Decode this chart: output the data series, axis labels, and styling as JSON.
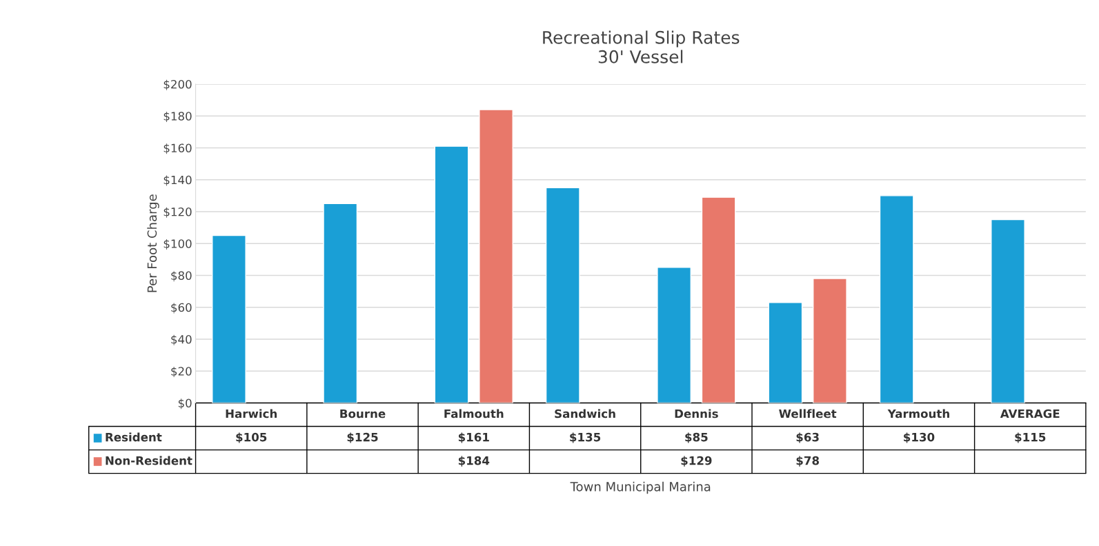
{
  "chart_data": {
    "type": "bar",
    "title": "Recreational Slip Rates",
    "subtitle": "30' Vessel",
    "annotations": [
      "Town Municipal Marina"
    ],
    "legend": "bottom left",
    "ylabel": "Per Foot Charge",
    "categories": [
      "Harwich",
      "Bourne",
      "Falmouth",
      "Sandwich",
      "Dennis",
      "Wellfleet",
      "Yarmouth",
      "AVERAGE"
    ],
    "series": [
      {
        "name": "Resident",
        "color": "#1a9fd6",
        "values": [
          105,
          125,
          161,
          135,
          85,
          63,
          130,
          115
        ],
        "value_labels": [
          "$105",
          "$125",
          "$161",
          "$135",
          "$85",
          "$63",
          "$130",
          "$115"
        ]
      },
      {
        "name": "Non-Resident",
        "color": "#e8786a",
        "values": [
          null,
          null,
          184,
          null,
          129,
          78,
          null,
          null
        ],
        "value_labels": [
          null,
          null,
          "$184",
          null,
          "$129",
          "$78",
          null,
          null
        ]
      }
    ],
    "ylim": [
      0,
      200
    ],
    "yticks": [
      {
        "value": 0,
        "label": "$0"
      },
      {
        "value": 20,
        "label": "$20"
      },
      {
        "value": 40,
        "label": "$40"
      },
      {
        "value": 60,
        "label": "$60"
      },
      {
        "value": 80,
        "label": "$80"
      },
      {
        "value": 100,
        "label": "$100"
      },
      {
        "value": 120,
        "label": "$120"
      },
      {
        "value": 140,
        "label": "$140"
      },
      {
        "value": 160,
        "label": "$160"
      },
      {
        "value": 180,
        "label": "$180"
      },
      {
        "value": 200,
        "label": "$200"
      }
    ],
    "grid": "y"
  }
}
